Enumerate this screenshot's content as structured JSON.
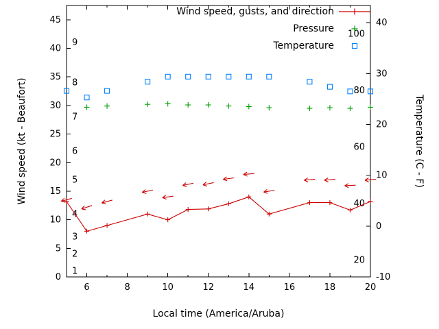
{
  "chart_data": {
    "type": "line",
    "title": "",
    "xlabel": "Local time (America/Aruba)",
    "ylabel_left": "Wind speed (kt - Beaufort)",
    "ylabel_right": "Temperature (C - F)",
    "x_range": [
      5,
      20
    ],
    "y_left_range": [
      0,
      47.5
    ],
    "y_right_range": [
      -10,
      43.4
    ],
    "x_major_ticks": [
      6,
      8,
      10,
      12,
      14,
      16,
      18,
      20
    ],
    "x_minor_ticks": [
      5,
      7,
      9,
      11,
      13,
      15,
      17,
      19
    ],
    "y_left_ticks": [
      0,
      5,
      10,
      15,
      20,
      25,
      30,
      35,
      40,
      45
    ],
    "y_right_ticks": [
      -10,
      0,
      10,
      20,
      30,
      40
    ],
    "beaufort_labels": [
      {
        "label": "1",
        "kt": 1
      },
      {
        "label": "2",
        "kt": 4
      },
      {
        "label": "3",
        "kt": 7
      },
      {
        "label": "4",
        "kt": 11
      },
      {
        "label": "5",
        "kt": 17
      },
      {
        "label": "6",
        "kt": 22
      },
      {
        "label": "7",
        "kt": 28
      },
      {
        "label": "8",
        "kt": 34
      },
      {
        "label": "9",
        "kt": 41
      }
    ],
    "fahrenheit_labels": [
      {
        "label": "20",
        "f": 20
      },
      {
        "label": "40",
        "f": 40
      },
      {
        "label": "60",
        "f": 60
      },
      {
        "label": "80",
        "f": 80
      },
      {
        "label": "100",
        "f": 100
      }
    ],
    "grid": false,
    "legend_position": "top-right-inside",
    "legend": [
      {
        "label": "Wind speed, gusts, and direction",
        "marker": "line-plus",
        "color": "#cc0000"
      },
      {
        "label": "Pressure",
        "marker": "plus",
        "color": "#00a000"
      },
      {
        "label": "Temperature",
        "marker": "square",
        "color": "#0080ff"
      }
    ],
    "series": [
      {
        "name": "wind-speed",
        "axis": "left",
        "style": "line-plus",
        "unit": "kt",
        "color": "#cc0000",
        "points": [
          {
            "x": 5,
            "y": 13.2
          },
          {
            "x": 6,
            "y": 8.0
          },
          {
            "x": 7,
            "y": 9.0
          },
          {
            "x": 9,
            "y": 11.0
          },
          {
            "x": 10,
            "y": 10.0
          },
          {
            "x": 11,
            "y": 11.8
          },
          {
            "x": 12,
            "y": 11.9
          },
          {
            "x": 13,
            "y": 12.8
          },
          {
            "x": 14,
            "y": 14.0
          },
          {
            "x": 15,
            "y": 11.0
          },
          {
            "x": 17,
            "y": 13.0
          },
          {
            "x": 18,
            "y": 13.0
          },
          {
            "x": 19,
            "y": 11.7
          },
          {
            "x": 20,
            "y": 13.2
          }
        ]
      },
      {
        "name": "wind-gusts",
        "axis": "left",
        "style": "arrow",
        "unit": "kt",
        "color": "#cc0000",
        "points": [
          {
            "x": 5,
            "y": 13.5,
            "rot": -15
          },
          {
            "x": 6,
            "y": 12.2,
            "rot": -18
          },
          {
            "x": 7,
            "y": 13.2,
            "rot": -15
          },
          {
            "x": 9,
            "y": 15.0,
            "rot": -12
          },
          {
            "x": 10,
            "y": 14.0,
            "rot": -8
          },
          {
            "x": 11,
            "y": 16.2,
            "rot": -12
          },
          {
            "x": 12,
            "y": 16.3,
            "rot": -12
          },
          {
            "x": 13,
            "y": 17.2,
            "rot": -8
          },
          {
            "x": 14,
            "y": 18.0,
            "rot": -5
          },
          {
            "x": 15,
            "y": 15.0,
            "rot": -10
          },
          {
            "x": 17,
            "y": 17.0,
            "rot": -5
          },
          {
            "x": 18,
            "y": 17.0,
            "rot": -5
          },
          {
            "x": 19,
            "y": 16.0,
            "rot": -3
          },
          {
            "x": 20,
            "y": 17.0,
            "rot": -5
          }
        ]
      },
      {
        "name": "pressure",
        "axis": "left",
        "style": "plus",
        "unit": "inHg",
        "color": "#00a000",
        "points": [
          {
            "x": 6,
            "y": 29.7
          },
          {
            "x": 7,
            "y": 29.9
          },
          {
            "x": 9,
            "y": 30.2
          },
          {
            "x": 10,
            "y": 30.3
          },
          {
            "x": 11,
            "y": 30.1
          },
          {
            "x": 12,
            "y": 30.1
          },
          {
            "x": 13,
            "y": 29.9
          },
          {
            "x": 14,
            "y": 29.8
          },
          {
            "x": 15,
            "y": 29.6
          },
          {
            "x": 17,
            "y": 29.5
          },
          {
            "x": 18,
            "y": 29.6
          },
          {
            "x": 19,
            "y": 29.5
          },
          {
            "x": 20,
            "y": 29.7
          }
        ]
      },
      {
        "name": "temperature",
        "axis": "right",
        "style": "square",
        "unit": "C",
        "color": "#0080ff",
        "points": [
          {
            "x": 5,
            "y": 26.6
          },
          {
            "x": 6,
            "y": 25.3
          },
          {
            "x": 7,
            "y": 26.6
          },
          {
            "x": 9,
            "y": 28.4
          },
          {
            "x": 10,
            "y": 29.4
          },
          {
            "x": 11,
            "y": 29.4
          },
          {
            "x": 12,
            "y": 29.4
          },
          {
            "x": 13,
            "y": 29.4
          },
          {
            "x": 14,
            "y": 29.4
          },
          {
            "x": 15,
            "y": 29.4
          },
          {
            "x": 17,
            "y": 28.4
          },
          {
            "x": 18,
            "y": 27.4
          },
          {
            "x": 19,
            "y": 26.5
          },
          {
            "x": 20,
            "y": 26.5
          }
        ]
      }
    ]
  }
}
